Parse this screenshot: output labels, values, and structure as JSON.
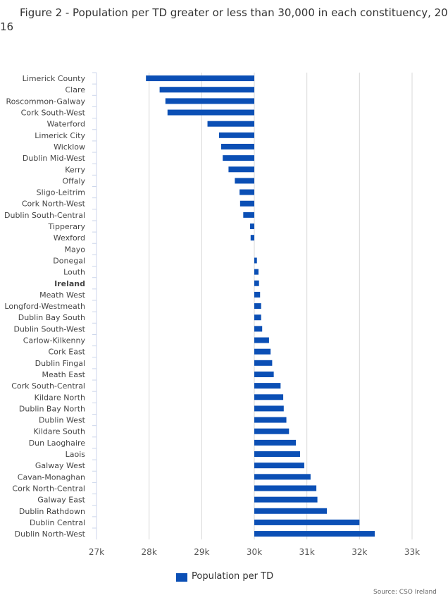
{
  "title": {
    "line1": "Figure 2 - Population per TD greater or less than 30,000 in each constituency, 20",
    "line2": "16"
  },
  "legend": {
    "label": "Population per TD"
  },
  "source": "Source: CSO Ireland",
  "colors": {
    "bar": "#0b4fb5",
    "grid": "#d8d8d8",
    "axis": "#ccd6eb"
  },
  "chart_data": {
    "type": "bar",
    "orientation": "horizontal",
    "baseline": 30000,
    "xlim": [
      27000,
      33000
    ],
    "xticks": [
      27000,
      28000,
      29000,
      30000,
      31000,
      32000,
      33000
    ],
    "xtick_labels": [
      "27k",
      "28k",
      "29k",
      "30k",
      "31k",
      "32k",
      "33k"
    ],
    "series": [
      {
        "name": "Population per TD"
      }
    ],
    "categories": [
      "Limerick County",
      "Clare",
      "Roscommon-Galway",
      "Cork South-West",
      "Waterford",
      "Limerick City",
      "Wicklow",
      "Dublin Mid-West",
      "Kerry",
      "Offaly",
      "Sligo-Leitrim",
      "Cork North-West",
      "Dublin South-Central",
      "Tipperary",
      "Wexford",
      "Mayo",
      "Donegal",
      "Louth",
      "Ireland",
      "Meath West",
      "Longford-Westmeath",
      "Dublin Bay South",
      "Dublin South-West",
      "Carlow-Kilkenny",
      "Cork East",
      "Dublin Fingal",
      "Meath East",
      "Cork South-Central",
      "Kildare North",
      "Dublin Bay North",
      "Dublin West",
      "Kildare South",
      "Dun Laoghaire",
      "Laois",
      "Galway West",
      "Cavan-Monaghan",
      "Cork North-Central",
      "Galway East",
      "Dublin Rathdown",
      "Dublin Central",
      "Dublin North-West"
    ],
    "values": [
      27940,
      28200,
      28310,
      28350,
      29110,
      29330,
      29370,
      29400,
      29510,
      29630,
      29720,
      29730,
      29790,
      29920,
      29930,
      30000,
      30050,
      30080,
      30090,
      30110,
      30130,
      30130,
      30150,
      30280,
      30310,
      30340,
      30370,
      30500,
      30550,
      30560,
      30610,
      30660,
      30790,
      30870,
      30950,
      31070,
      31180,
      31200,
      31380,
      32000,
      32290
    ],
    "bold_categories": [
      "Ireland"
    ]
  }
}
